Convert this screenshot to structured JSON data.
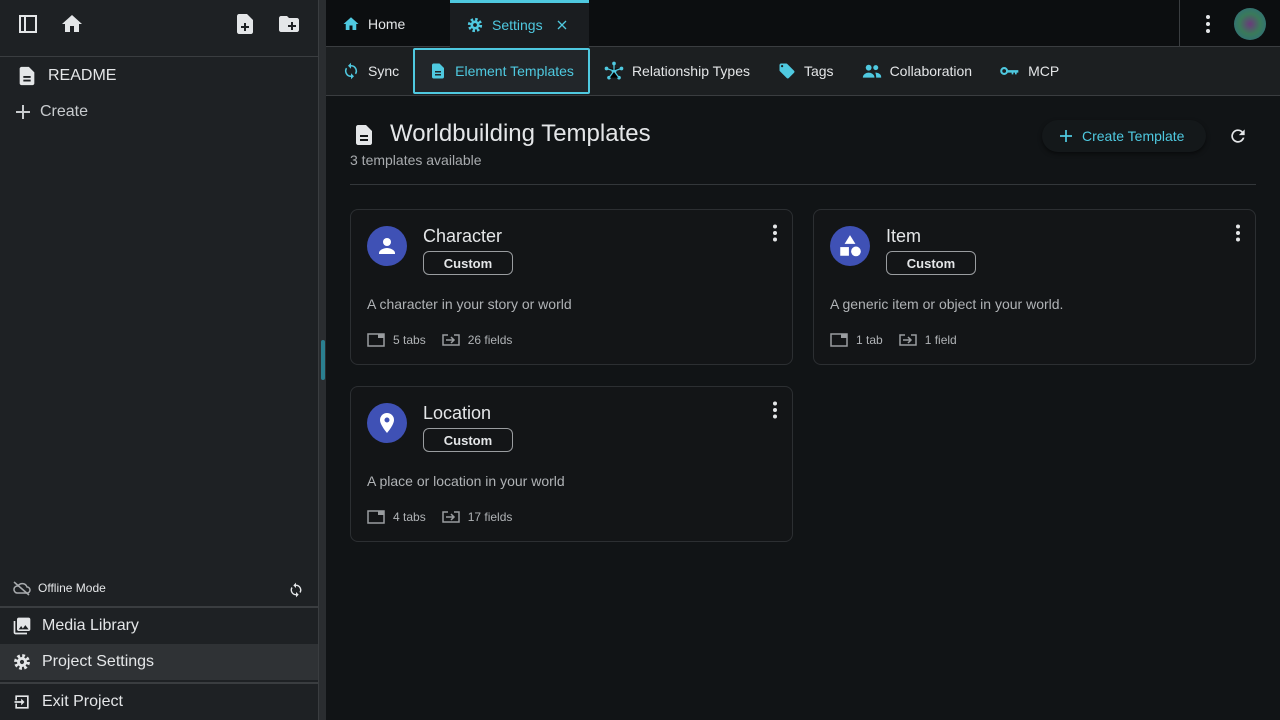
{
  "sidebar": {
    "readme": "README",
    "create": "Create",
    "offline": "Offline Mode",
    "media": "Media Library",
    "project_settings": "Project Settings",
    "exit": "Exit Project"
  },
  "tabs": [
    {
      "label": "Home",
      "icon": "home-icon"
    },
    {
      "label": "Settings",
      "icon": "gear-icon",
      "active": true
    }
  ],
  "subtabs": [
    {
      "label": "Sync"
    },
    {
      "label": "Element Templates",
      "active": true
    },
    {
      "label": "Relationship Types"
    },
    {
      "label": "Tags"
    },
    {
      "label": "Collaboration"
    },
    {
      "label": "MCP"
    }
  ],
  "main": {
    "title": "Worldbuilding Templates",
    "subtitle": "3 templates available",
    "create_label": "Create Template"
  },
  "cards": [
    {
      "name": "Character",
      "chip": "Custom",
      "desc": "A character in your story or world",
      "tabs": "5 tabs",
      "fields": "26 fields",
      "icon": "person-icon"
    },
    {
      "name": "Item",
      "chip": "Custom",
      "desc": "A generic item or object in your world.",
      "tabs": "1 tab",
      "fields": "1 field",
      "icon": "shapes-icon"
    },
    {
      "name": "Location",
      "chip": "Custom",
      "desc": "A place or location in your world",
      "tabs": "4 tabs",
      "fields": "17 fields",
      "icon": "location-pin-icon"
    }
  ],
  "colors": {
    "accent": "#4fc9e0",
    "avatar": "#3f51b5"
  }
}
